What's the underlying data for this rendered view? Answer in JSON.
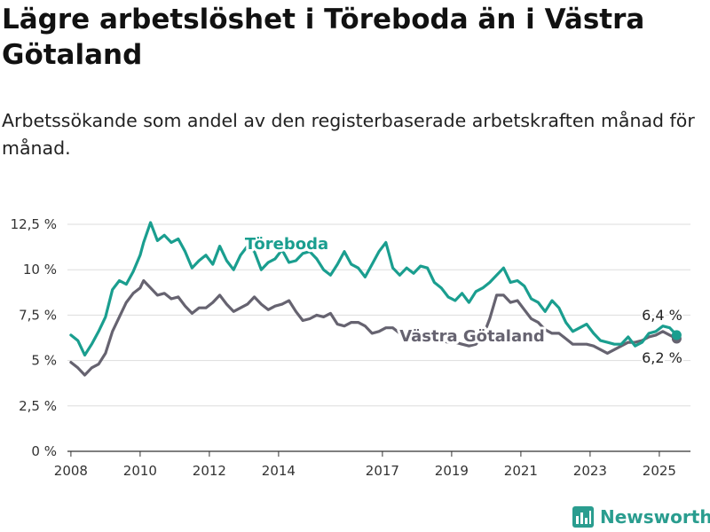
{
  "title": "Lägre arbetslöshet i Töreboda än i Västra Götaland",
  "subtitle": "Arbetssökande som andel av den registerbaserade arbetskraften månad för månad.",
  "brand": {
    "name": "Newsworthy",
    "icon": "newsworthy-logo-icon",
    "color": "#2a9d8f"
  },
  "chart_data": {
    "type": "line",
    "title": "Lägre arbetslöshet i Töreboda än i Västra Götaland",
    "subtitle": "Arbetssökande som andel av den registerbaserade arbetskraften månad för månad.",
    "xlabel": "",
    "ylabel": "",
    "ylim": [
      0,
      12.5
    ],
    "yticks": [
      0,
      2.5,
      5,
      7.5,
      10,
      12.5
    ],
    "ytick_labels": [
      "0 %",
      "2,5 %",
      "5 %",
      "7,5 %",
      "10 %",
      "12,5 %"
    ],
    "xlim": [
      2007.9,
      2025.9
    ],
    "xticks": [
      2008,
      2010,
      2012,
      2014,
      2017,
      2019,
      2021,
      2023,
      2025
    ],
    "xtick_labels": [
      "2008",
      "2010",
      "2012",
      "2014",
      "2017",
      "2019",
      "2021",
      "2023",
      "2025"
    ],
    "grid": "horizontal",
    "legend": "direct labels",
    "series": [
      {
        "name": "Töreboda",
        "color": "#1a9e8f",
        "x": [
          2008.0,
          2008.2,
          2008.4,
          2008.6,
          2008.8,
          2009.0,
          2009.2,
          2009.4,
          2009.6,
          2009.8,
          2010.0,
          2010.1,
          2010.3,
          2010.5,
          2010.7,
          2010.9,
          2011.1,
          2011.3,
          2011.5,
          2011.7,
          2011.9,
          2012.1,
          2012.3,
          2012.5,
          2012.7,
          2012.9,
          2013.1,
          2013.3,
          2013.5,
          2013.7,
          2013.9,
          2014.1,
          2014.3,
          2014.5,
          2014.7,
          2014.9,
          2015.1,
          2015.3,
          2015.5,
          2015.7,
          2015.9,
          2016.1,
          2016.3,
          2016.5,
          2016.7,
          2016.9,
          2017.1,
          2017.3,
          2017.5,
          2017.7,
          2017.9,
          2018.1,
          2018.3,
          2018.5,
          2018.7,
          2018.9,
          2019.1,
          2019.3,
          2019.5,
          2019.7,
          2019.9,
          2020.1,
          2020.3,
          2020.5,
          2020.7,
          2020.9,
          2021.1,
          2021.3,
          2021.5,
          2021.7,
          2021.9,
          2022.1,
          2022.3,
          2022.5,
          2022.7,
          2022.9,
          2023.1,
          2023.3,
          2023.5,
          2023.7,
          2023.9,
          2024.1,
          2024.3,
          2024.5,
          2024.7,
          2024.9,
          2025.1,
          2025.3,
          2025.5
        ],
        "values": [
          6.4,
          6.1,
          5.3,
          5.9,
          6.6,
          7.4,
          8.9,
          9.4,
          9.2,
          9.9,
          10.8,
          11.5,
          12.6,
          11.6,
          11.9,
          11.5,
          11.7,
          11.0,
          10.1,
          10.5,
          10.8,
          10.3,
          11.3,
          10.5,
          10.0,
          10.8,
          11.3,
          11.0,
          10.0,
          10.4,
          10.6,
          11.1,
          10.4,
          10.5,
          10.9,
          11.0,
          10.6,
          10.0,
          9.7,
          10.3,
          11.0,
          10.3,
          10.1,
          9.6,
          10.3,
          11.0,
          11.5,
          10.1,
          9.7,
          10.1,
          9.8,
          10.2,
          10.1,
          9.3,
          9.0,
          8.5,
          8.3,
          8.7,
          8.2,
          8.8,
          9.0,
          9.3,
          9.7,
          10.1,
          9.3,
          9.4,
          9.1,
          8.4,
          8.2,
          7.7,
          8.3,
          7.9,
          7.1,
          6.6,
          6.8,
          7.0,
          6.5,
          6.1,
          6.0,
          5.9,
          5.9,
          6.3,
          5.8,
          6.0,
          6.5,
          6.6,
          6.9,
          6.8,
          6.4
        ]
      },
      {
        "name": "Västra Götaland",
        "color": "#666370",
        "x": [
          2008.0,
          2008.2,
          2008.4,
          2008.6,
          2008.8,
          2009.0,
          2009.2,
          2009.4,
          2009.6,
          2009.8,
          2010.0,
          2010.1,
          2010.3,
          2010.5,
          2010.7,
          2010.9,
          2011.1,
          2011.3,
          2011.5,
          2011.7,
          2011.9,
          2012.1,
          2012.3,
          2012.5,
          2012.7,
          2012.9,
          2013.1,
          2013.3,
          2013.5,
          2013.7,
          2013.9,
          2014.1,
          2014.3,
          2014.5,
          2014.7,
          2014.9,
          2015.1,
          2015.3,
          2015.5,
          2015.7,
          2015.9,
          2016.1,
          2016.3,
          2016.5,
          2016.7,
          2016.9,
          2017.1,
          2017.3,
          2017.5,
          2017.7,
          2017.9,
          2018.1,
          2018.3,
          2018.5,
          2018.7,
          2018.9,
          2019.1,
          2019.3,
          2019.5,
          2019.7,
          2019.9,
          2020.1,
          2020.3,
          2020.5,
          2020.7,
          2020.9,
          2021.1,
          2021.3,
          2021.5,
          2021.7,
          2021.9,
          2022.1,
          2022.3,
          2022.5,
          2022.7,
          2022.9,
          2023.1,
          2023.3,
          2023.5,
          2023.7,
          2023.9,
          2024.1,
          2024.3,
          2024.5,
          2024.7,
          2024.9,
          2025.1,
          2025.3,
          2025.5
        ],
        "values": [
          4.9,
          4.6,
          4.2,
          4.6,
          4.8,
          5.4,
          6.6,
          7.4,
          8.2,
          8.7,
          9.0,
          9.4,
          9.0,
          8.6,
          8.7,
          8.4,
          8.5,
          8.0,
          7.6,
          7.9,
          7.9,
          8.2,
          8.6,
          8.1,
          7.7,
          7.9,
          8.1,
          8.5,
          8.1,
          7.8,
          8.0,
          8.1,
          8.3,
          7.7,
          7.2,
          7.3,
          7.5,
          7.4,
          7.6,
          7.0,
          6.9,
          7.1,
          7.1,
          6.9,
          6.5,
          6.6,
          6.8,
          6.8,
          6.5,
          6.4,
          6.3,
          6.4,
          6.3,
          6.2,
          6.1,
          6.0,
          6.0,
          5.9,
          5.8,
          5.9,
          6.3,
          7.3,
          8.6,
          8.6,
          8.2,
          8.3,
          7.8,
          7.3,
          7.1,
          6.7,
          6.5,
          6.5,
          6.2,
          5.9,
          5.9,
          5.9,
          5.8,
          5.6,
          5.4,
          5.6,
          5.8,
          6.0,
          6.0,
          6.1,
          6.3,
          6.4,
          6.6,
          6.4,
          6.2
        ]
      }
    ],
    "annotations": [
      {
        "series": "Töreboda",
        "text": "6,4 %"
      },
      {
        "series": "Västra Götaland",
        "text": "6,2 %"
      }
    ]
  }
}
